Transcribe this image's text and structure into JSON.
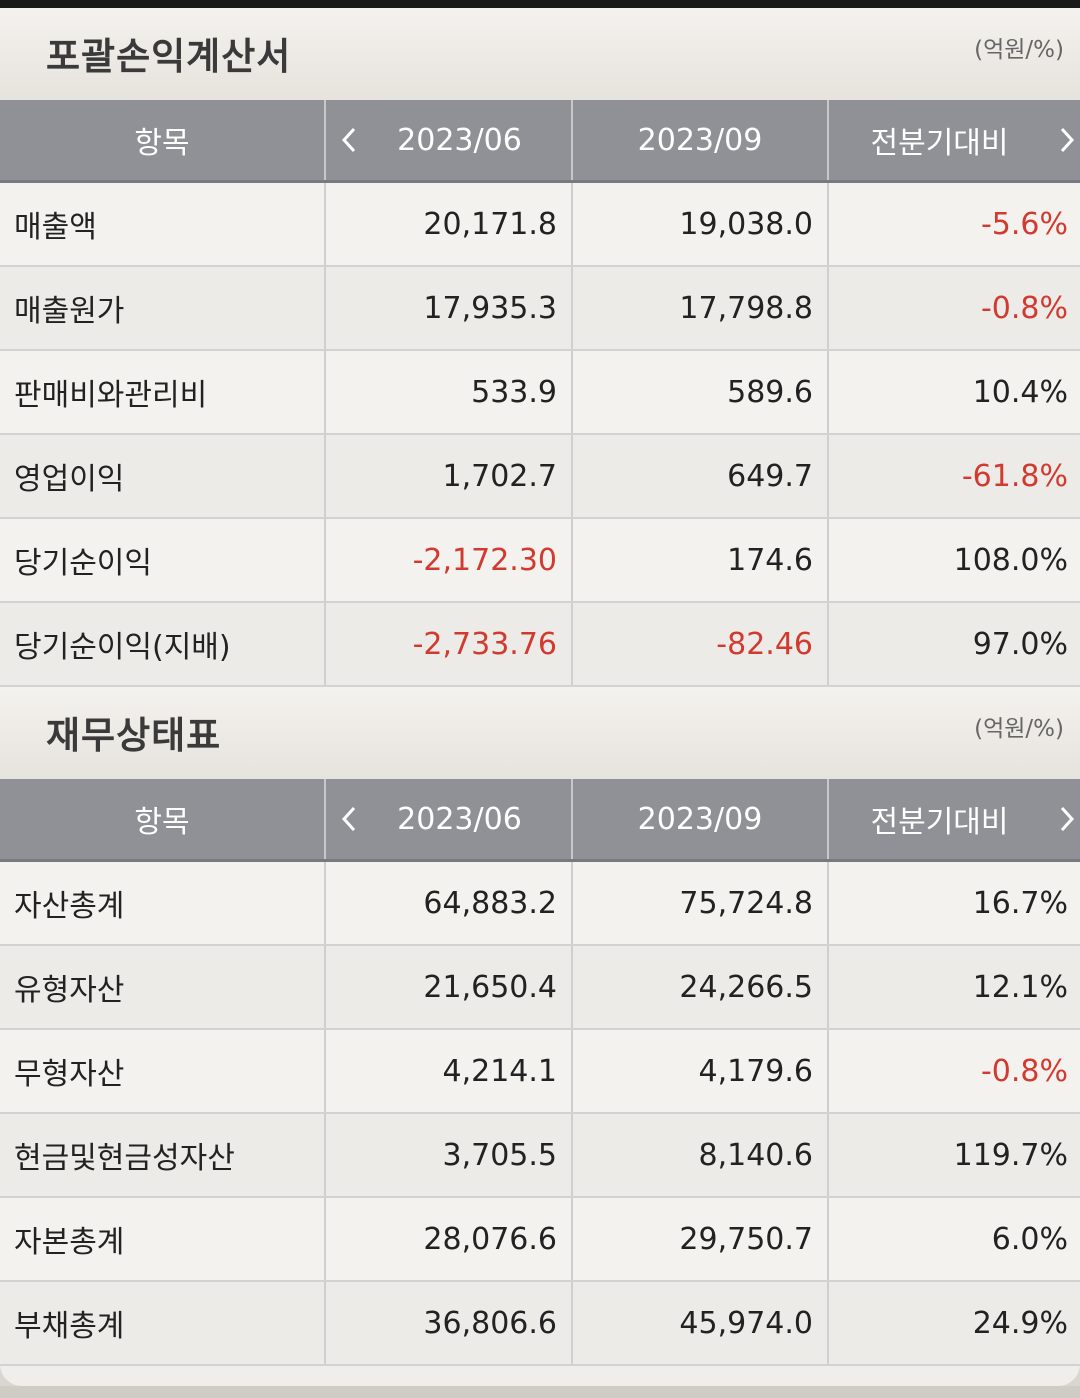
{
  "colors": {
    "negative": "#d23a30",
    "header_bg": "#8f9196"
  },
  "sections": [
    {
      "title": "포괄손익계산서",
      "unit": "(억원/%)",
      "headers": {
        "item": "항목",
        "prev_icon": "chevron-left-icon",
        "p1": "2023/06",
        "p2": "2023/09",
        "change": "전분기대비",
        "next_icon": "chevron-right-icon"
      },
      "rows": [
        {
          "label": "매출액",
          "v1": "20,171.8",
          "v2": "19,038.0",
          "ch": "-5.6%"
        },
        {
          "label": "매출원가",
          "v1": "17,935.3",
          "v2": "17,798.8",
          "ch": "-0.8%"
        },
        {
          "label": "판매비와관리비",
          "v1": "533.9",
          "v2": "589.6",
          "ch": "10.4%"
        },
        {
          "label": "영업이익",
          "v1": "1,702.7",
          "v2": "649.7",
          "ch": "-61.8%"
        },
        {
          "label": "당기순이익",
          "v1": "-2,172.30",
          "v2": "174.6",
          "ch": "108.0%"
        },
        {
          "label": "당기순이익(지배)",
          "v1": "-2,733.76",
          "v2": "-82.46",
          "ch": "97.0%"
        }
      ]
    },
    {
      "title": "재무상태표",
      "unit": "(억원/%)",
      "headers": {
        "item": "항목",
        "prev_icon": "chevron-left-icon",
        "p1": "2023/06",
        "p2": "2023/09",
        "change": "전분기대비",
        "next_icon": "chevron-right-icon"
      },
      "rows": [
        {
          "label": "자산총계",
          "v1": "64,883.2",
          "v2": "75,724.8",
          "ch": "16.7%"
        },
        {
          "label": "유형자산",
          "v1": "21,650.4",
          "v2": "24,266.5",
          "ch": "12.1%"
        },
        {
          "label": "무형자산",
          "v1": "4,214.1",
          "v2": "4,179.6",
          "ch": "-0.8%"
        },
        {
          "label": "현금및현금성자산",
          "v1": "3,705.5",
          "v2": "8,140.6",
          "ch": "119.7%"
        },
        {
          "label": "자본총계",
          "v1": "28,076.6",
          "v2": "29,750.7",
          "ch": "6.0%"
        },
        {
          "label": "부채총계",
          "v1": "36,806.6",
          "v2": "45,974.0",
          "ch": "24.9%"
        }
      ]
    }
  ]
}
